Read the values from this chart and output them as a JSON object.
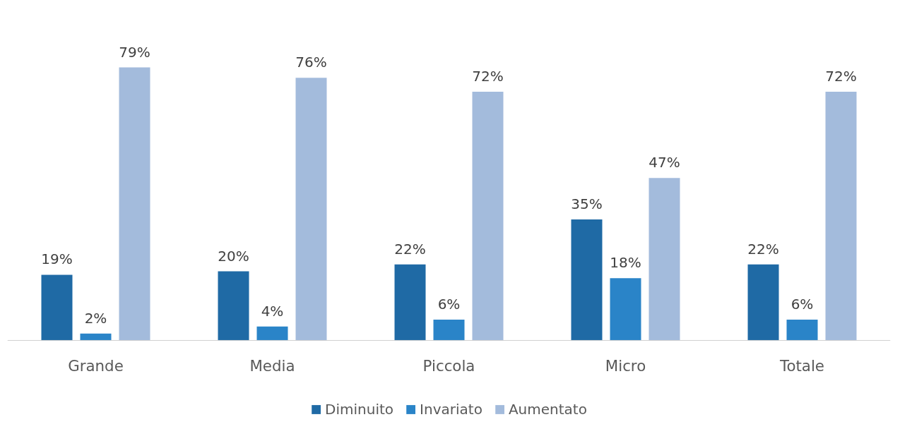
{
  "chart_data": {
    "type": "bar",
    "categories": [
      "Grande",
      "Media",
      "Piccola",
      "Micro",
      "Totale"
    ],
    "series": [
      {
        "name": "Diminuito",
        "color": "#1f6aa5",
        "values": [
          19,
          20,
          22,
          35,
          22
        ],
        "value_labels": [
          "19%",
          "20%",
          "22%",
          "35%",
          "22%"
        ]
      },
      {
        "name": "Invariato",
        "color": "#2a84c8",
        "values": [
          2,
          4,
          6,
          18,
          6
        ],
        "value_labels": [
          "2%",
          "4%",
          "6%",
          "18%",
          "6%"
        ]
      },
      {
        "name": "Aumentato",
        "color": "#a3bbdc",
        "values": [
          79,
          76,
          72,
          47,
          72
        ],
        "value_labels": [
          "79%",
          "76%",
          "72%",
          "47%",
          "72%"
        ]
      }
    ],
    "grid": false,
    "legend": "bottom"
  }
}
